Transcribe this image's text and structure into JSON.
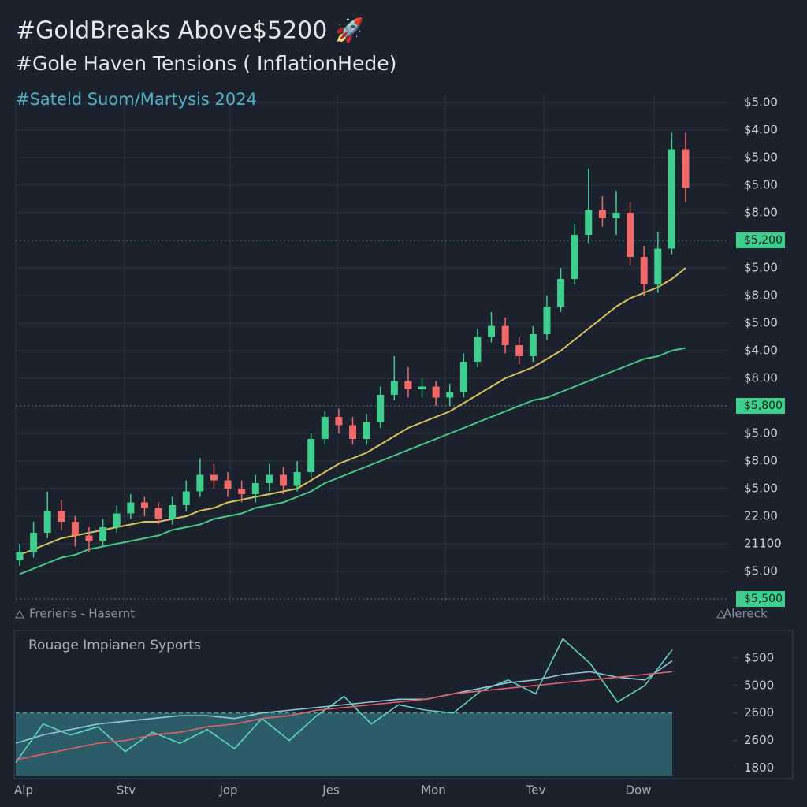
{
  "chart_data": [
    {
      "type": "candlestick",
      "title": "#GoldBreaks Above$5200 🚀",
      "subtitle": "#Gole Haven Tensions ( InflationHede)",
      "annotation": "#Sateld Suom/Martysis 2024",
      "footer_left": "Frerieris - Hasernt",
      "footer_right": "Alereck",
      "ylim": [
        0,
        18
      ],
      "yticks": [
        {
          "value": 0,
          "label": "$5,500",
          "highlight": true
        },
        {
          "value": 1,
          "label": "$5.00"
        },
        {
          "value": 2,
          "label": "21100"
        },
        {
          "value": 3,
          "label": "22.00"
        },
        {
          "value": 4,
          "label": "$5.00"
        },
        {
          "value": 5,
          "label": "$8.00"
        },
        {
          "value": 6,
          "label": "$5.00"
        },
        {
          "value": 7,
          "label": "$5,800",
          "highlight": true
        },
        {
          "value": 8,
          "label": "$8.00"
        },
        {
          "value": 9,
          "label": "$4.00"
        },
        {
          "value": 10,
          "label": "$5.00"
        },
        {
          "value": 11,
          "label": "$8.00"
        },
        {
          "value": 12,
          "label": "$5.00"
        },
        {
          "value": 13,
          "label": "$5,200",
          "highlight": true
        },
        {
          "value": 14,
          "label": "$8.00"
        },
        {
          "value": 15,
          "label": "$5.00"
        },
        {
          "value": 16,
          "label": "$5.00"
        },
        {
          "value": 17,
          "label": "$4.00"
        },
        {
          "value": 18,
          "label": "$5.00"
        }
      ],
      "grid": true,
      "up_color": "#3ecf8e",
      "down_color": "#f06a6a",
      "open": [
        1.4,
        1.7,
        2.4,
        3.2,
        2.8,
        2.3,
        2.1,
        2.6,
        3.1,
        3.5,
        3.3,
        2.9,
        3.4,
        3.9,
        4.5,
        4.3,
        4.0,
        3.8,
        4.2,
        4.5,
        4.1,
        4.6,
        5.8,
        6.6,
        6.3,
        5.8,
        6.4,
        7.4,
        7.9,
        7.6,
        7.7,
        7.3,
        7.5,
        8.6,
        9.5,
        9.9,
        9.2,
        8.8,
        9.6,
        10.6,
        11.6,
        13.2,
        14.1,
        13.8,
        14.0,
        12.4,
        11.4,
        12.7,
        16.3
      ],
      "high": [
        2.0,
        2.8,
        3.9,
        3.6,
        3.0,
        2.6,
        2.9,
        3.4,
        3.8,
        3.7,
        3.5,
        3.7,
        4.3,
        5.1,
        4.9,
        4.6,
        4.3,
        4.5,
        4.9,
        4.8,
        5.0,
        6.0,
        6.8,
        6.9,
        6.6,
        6.7,
        7.7,
        8.8,
        8.4,
        8.0,
        7.9,
        7.8,
        8.9,
        9.8,
        10.4,
        10.2,
        9.5,
        9.9,
        11.0,
        12.0,
        13.6,
        15.6,
        14.6,
        14.8,
        14.4,
        12.8,
        13.3,
        16.9,
        16.9
      ],
      "low": [
        1.2,
        1.5,
        2.2,
        2.5,
        1.9,
        1.7,
        1.9,
        2.4,
        2.9,
        3.0,
        2.7,
        2.7,
        3.2,
        3.7,
        4.0,
        3.7,
        3.5,
        3.5,
        3.9,
        3.8,
        3.9,
        4.4,
        5.6,
        6.0,
        5.6,
        5.6,
        6.2,
        7.2,
        7.3,
        7.3,
        7.0,
        7.0,
        7.3,
        8.4,
        9.3,
        8.9,
        8.5,
        8.6,
        9.4,
        10.4,
        11.4,
        12.9,
        13.5,
        13.2,
        12.1,
        11.0,
        11.1,
        12.5,
        14.4
      ],
      "close": [
        1.7,
        2.4,
        3.2,
        2.8,
        2.3,
        2.1,
        2.6,
        3.1,
        3.5,
        3.3,
        2.9,
        3.4,
        3.9,
        4.5,
        4.3,
        4.0,
        3.8,
        4.2,
        4.5,
        4.1,
        4.6,
        5.8,
        6.6,
        6.3,
        5.8,
        6.4,
        7.4,
        7.9,
        7.6,
        7.7,
        7.3,
        7.5,
        8.6,
        9.5,
        9.9,
        9.2,
        8.8,
        9.6,
        10.6,
        11.6,
        13.2,
        14.1,
        13.8,
        14.0,
        12.4,
        11.4,
        12.7,
        16.3,
        14.9
      ],
      "series": [
        {
          "color": "#d8c35c",
          "values": [
            1.6,
            1.8,
            2.0,
            2.2,
            2.3,
            2.4,
            2.5,
            2.6,
            2.7,
            2.8,
            2.8,
            2.9,
            3.0,
            3.2,
            3.3,
            3.5,
            3.6,
            3.7,
            3.8,
            3.9,
            4.0,
            4.3,
            4.6,
            4.9,
            5.1,
            5.3,
            5.6,
            5.9,
            6.2,
            6.4,
            6.6,
            6.8,
            7.1,
            7.4,
            7.7,
            8.0,
            8.2,
            8.4,
            8.7,
            9.0,
            9.4,
            9.8,
            10.2,
            10.6,
            10.9,
            11.1,
            11.3,
            11.6,
            12.0
          ]
        },
        {
          "color": "#45c98a",
          "values": [
            0.9,
            1.1,
            1.3,
            1.5,
            1.6,
            1.8,
            1.9,
            2.0,
            2.1,
            2.2,
            2.3,
            2.5,
            2.6,
            2.7,
            2.9,
            3.0,
            3.1,
            3.3,
            3.4,
            3.5,
            3.7,
            3.9,
            4.2,
            4.4,
            4.6,
            4.8,
            5.0,
            5.2,
            5.4,
            5.6,
            5.8,
            6.0,
            6.2,
            6.4,
            6.6,
            6.8,
            7.0,
            7.2,
            7.3,
            7.5,
            7.7,
            7.9,
            8.1,
            8.3,
            8.5,
            8.7,
            8.8,
            9.0,
            9.1
          ]
        }
      ]
    },
    {
      "type": "line",
      "title": "Rouage Impianen Syports",
      "x_labels": [
        "Aip",
        "Stv",
        "Jop",
        "Jes",
        "Mon",
        "Tev",
        "Dow"
      ],
      "ylim": [
        -0.3,
        4.8
      ],
      "yticks": [
        {
          "value": 0,
          "label": "1800"
        },
        {
          "value": 1,
          "label": "2600"
        },
        {
          "value": 2,
          "label": "2600"
        },
        {
          "value": 3,
          "label": "5000"
        },
        {
          "value": 4,
          "label": "$500"
        }
      ],
      "shade_below": 2,
      "shade_color": "#2e6673",
      "series": [
        {
          "color": "#5fd4c0",
          "values": [
            0.2,
            1.6,
            1.2,
            1.5,
            0.6,
            1.3,
            0.9,
            1.4,
            0.7,
            1.8,
            1.0,
            1.9,
            2.6,
            1.6,
            2.3,
            2.1,
            2.0,
            2.8,
            3.2,
            2.7,
            4.7,
            3.8,
            2.4,
            3.0,
            4.3
          ]
        },
        {
          "color": "#8ec9d2",
          "values": [
            0.9,
            1.2,
            1.4,
            1.6,
            1.7,
            1.8,
            1.9,
            1.9,
            1.8,
            2.0,
            2.1,
            2.2,
            2.3,
            2.4,
            2.5,
            2.5,
            2.7,
            2.9,
            3.1,
            3.2,
            3.4,
            3.5,
            3.3,
            3.2,
            3.9
          ]
        },
        {
          "color": "#e0616a",
          "values": [
            0.3,
            0.5,
            0.7,
            0.9,
            1.0,
            1.2,
            1.3,
            1.5,
            1.6,
            1.8,
            1.9,
            2.1,
            2.2,
            2.3,
            2.4,
            2.5,
            2.7,
            2.8,
            2.9,
            3.0,
            3.1,
            3.2,
            3.3,
            3.4,
            3.5
          ]
        }
      ]
    }
  ]
}
